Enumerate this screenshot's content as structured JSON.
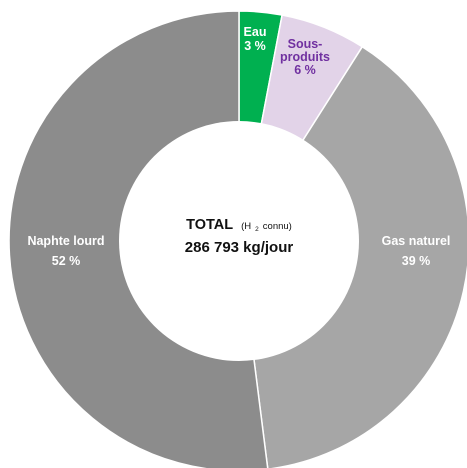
{
  "chart_data": {
    "type": "pie",
    "donut": true,
    "slices": [
      {
        "label_lines": [
          "Eau"
        ],
        "label": "Eau",
        "value": 3,
        "value_text": "3 %",
        "color": "#00b050",
        "label_color": "#ffffff"
      },
      {
        "label_lines": [
          "Sous-",
          "produits"
        ],
        "label": "Sous-produits",
        "value": 6,
        "value_text": "6 %",
        "color": "#e2d3e8",
        "label_color": "#7030a0"
      },
      {
        "label_lines": [
          "Gas naturel"
        ],
        "label": "Gas naturel",
        "value": 39,
        "value_text": "39 %",
        "color": "#a6a6a6",
        "label_color": "#ffffff"
      },
      {
        "label_lines": [
          "Naphte lourd"
        ],
        "label": "Naphte lourd",
        "value": 52,
        "value_text": "52 %",
        "color": "#8c8c8c",
        "label_color": "#ffffff"
      }
    ],
    "center": {
      "title": "TOTAL",
      "note_prefix": "(H",
      "note_sub": "2",
      "note_suffix": " connu)",
      "value_text": "286 793 kg/jour"
    }
  }
}
